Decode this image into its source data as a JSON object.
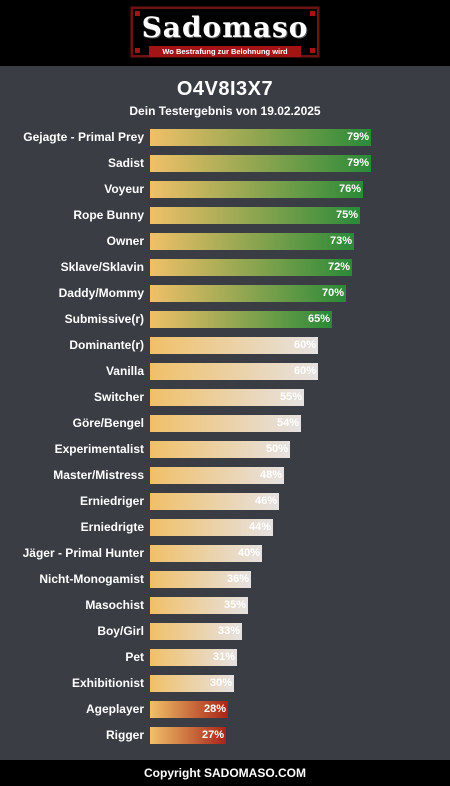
{
  "header": {
    "logo_text": "Sadomaso",
    "logo_tagline": "Wo Bestrafung zur Belohnung wird"
  },
  "result": {
    "code": "O4V8I3X7",
    "subtitle": "Dein Testergebnis von 19.02.2025"
  },
  "colors": {
    "bar_start": "#f0c068",
    "high_end": "#2a8a38",
    "mid_end": "#e6e2e2",
    "low_end": "#a82418",
    "background": "#3a3d44"
  },
  "chart_data": {
    "type": "bar",
    "orientation": "horizontal",
    "xlim": [
      0,
      100
    ],
    "categories": [
      "Gejagte - Primal Prey",
      "Sadist",
      "Voyeur",
      "Rope Bunny",
      "Owner",
      "Sklave/Sklavin",
      "Daddy/Mommy",
      "Submissive(r)",
      "Dominante(r)",
      "Vanilla",
      "Switcher",
      "Göre/Bengel",
      "Experimentalist",
      "Master/Mistress",
      "Erniedriger",
      "Erniedrigte",
      "Jäger - Primal Hunter",
      "Nicht-Monogamist",
      "Masochist",
      "Boy/Girl",
      "Pet",
      "Exhibitionist",
      "Ageplayer",
      "Rigger"
    ],
    "values": [
      79,
      79,
      76,
      75,
      73,
      72,
      70,
      65,
      60,
      60,
      55,
      54,
      50,
      48,
      46,
      44,
      40,
      36,
      35,
      33,
      31,
      30,
      28,
      27
    ],
    "value_labels": [
      "79%",
      "79%",
      "76%",
      "75%",
      "73%",
      "72%",
      "70%",
      "65%",
      "60%",
      "60%",
      "55%",
      "54%",
      "50%",
      "48%",
      "46%",
      "44%",
      "40%",
      "36%",
      "35%",
      "33%",
      "31%",
      "30%",
      "28%",
      "27%"
    ],
    "tiers": [
      "high",
      "high",
      "high",
      "high",
      "high",
      "high",
      "high",
      "high",
      "mid",
      "mid",
      "mid",
      "mid",
      "mid",
      "mid",
      "mid",
      "mid",
      "mid",
      "mid",
      "mid",
      "mid",
      "mid",
      "mid",
      "low",
      "low"
    ]
  },
  "footer": {
    "text": "Copyright SADOMASO.COM"
  }
}
